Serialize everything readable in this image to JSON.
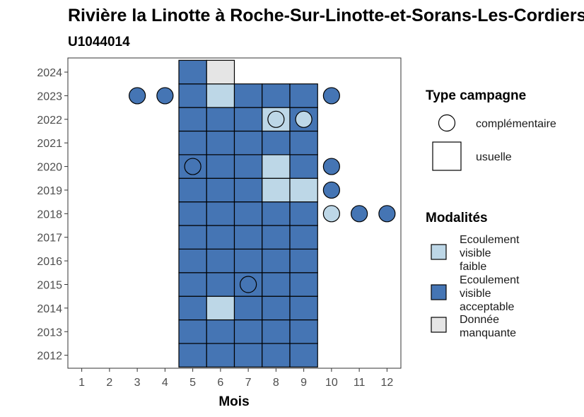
{
  "chart_data": {
    "type": "heatmap",
    "title": "Rivière la Linotte à Roche-Sur-Linotte-et-Sorans-Les-Cordiers",
    "subtitle": "U1044014",
    "xlabel": "Mois",
    "ylabel": "",
    "x_ticks": [
      "1",
      "2",
      "3",
      "4",
      "5",
      "6",
      "7",
      "8",
      "9",
      "10",
      "11",
      "12"
    ],
    "y_ticks": [
      "2012",
      "2013",
      "2014",
      "2015",
      "2016",
      "2017",
      "2018",
      "2019",
      "2020",
      "2021",
      "2022",
      "2023",
      "2024"
    ],
    "xlim": [
      0.5,
      12.5
    ],
    "ylim": [
      2011.45,
      2024.6
    ],
    "grid": false,
    "legend_position": "right",
    "colors": {
      "Ecoulement visible faible": "#bdd7e7",
      "Ecoulement visible acceptable": "#4575b4",
      "Donnée manquante": "#e5e5e5"
    },
    "legend": {
      "type_title": "Type campagne",
      "type_entries": [
        {
          "shape": "circle",
          "label": "complémentaire"
        },
        {
          "shape": "square",
          "label": "usuelle"
        }
      ],
      "modalites_title": "Modalités",
      "modalites_entries": [
        {
          "key": "Ecoulement visible faible",
          "lines": [
            "Ecoulement",
            "visible",
            "faible"
          ]
        },
        {
          "key": "Ecoulement visible acceptable",
          "lines": [
            "Ecoulement",
            "visible",
            "acceptable"
          ]
        },
        {
          "key": "Donnée manquante",
          "lines": [
            "Donnée",
            "manquante"
          ]
        }
      ]
    },
    "usuelle": [
      {
        "year": 2012,
        "month": 5,
        "value": "Ecoulement visible acceptable"
      },
      {
        "year": 2012,
        "month": 6,
        "value": "Ecoulement visible acceptable"
      },
      {
        "year": 2012,
        "month": 7,
        "value": "Ecoulement visible acceptable"
      },
      {
        "year": 2012,
        "month": 8,
        "value": "Ecoulement visible acceptable"
      },
      {
        "year": 2012,
        "month": 9,
        "value": "Ecoulement visible acceptable"
      },
      {
        "year": 2013,
        "month": 5,
        "value": "Ecoulement visible acceptable"
      },
      {
        "year": 2013,
        "month": 6,
        "value": "Ecoulement visible acceptable"
      },
      {
        "year": 2013,
        "month": 7,
        "value": "Ecoulement visible acceptable"
      },
      {
        "year": 2013,
        "month": 8,
        "value": "Ecoulement visible acceptable"
      },
      {
        "year": 2013,
        "month": 9,
        "value": "Ecoulement visible acceptable"
      },
      {
        "year": 2014,
        "month": 5,
        "value": "Ecoulement visible acceptable"
      },
      {
        "year": 2014,
        "month": 6,
        "value": "Ecoulement visible faible"
      },
      {
        "year": 2014,
        "month": 7,
        "value": "Ecoulement visible acceptable"
      },
      {
        "year": 2014,
        "month": 8,
        "value": "Ecoulement visible acceptable"
      },
      {
        "year": 2014,
        "month": 9,
        "value": "Ecoulement visible acceptable"
      },
      {
        "year": 2015,
        "month": 5,
        "value": "Ecoulement visible acceptable"
      },
      {
        "year": 2015,
        "month": 6,
        "value": "Ecoulement visible acceptable"
      },
      {
        "year": 2015,
        "month": 7,
        "value": "Ecoulement visible acceptable"
      },
      {
        "year": 2015,
        "month": 8,
        "value": "Ecoulement visible acceptable"
      },
      {
        "year": 2015,
        "month": 9,
        "value": "Ecoulement visible acceptable"
      },
      {
        "year": 2016,
        "month": 5,
        "value": "Ecoulement visible acceptable"
      },
      {
        "year": 2016,
        "month": 6,
        "value": "Ecoulement visible acceptable"
      },
      {
        "year": 2016,
        "month": 7,
        "value": "Ecoulement visible acceptable"
      },
      {
        "year": 2016,
        "month": 8,
        "value": "Ecoulement visible acceptable"
      },
      {
        "year": 2016,
        "month": 9,
        "value": "Ecoulement visible acceptable"
      },
      {
        "year": 2017,
        "month": 5,
        "value": "Ecoulement visible acceptable"
      },
      {
        "year": 2017,
        "month": 6,
        "value": "Ecoulement visible acceptable"
      },
      {
        "year": 2017,
        "month": 7,
        "value": "Ecoulement visible acceptable"
      },
      {
        "year": 2017,
        "month": 8,
        "value": "Ecoulement visible acceptable"
      },
      {
        "year": 2017,
        "month": 9,
        "value": "Ecoulement visible acceptable"
      },
      {
        "year": 2018,
        "month": 5,
        "value": "Ecoulement visible acceptable"
      },
      {
        "year": 2018,
        "month": 6,
        "value": "Ecoulement visible acceptable"
      },
      {
        "year": 2018,
        "month": 7,
        "value": "Ecoulement visible acceptable"
      },
      {
        "year": 2018,
        "month": 8,
        "value": "Ecoulement visible acceptable"
      },
      {
        "year": 2018,
        "month": 9,
        "value": "Ecoulement visible acceptable"
      },
      {
        "year": 2019,
        "month": 5,
        "value": "Ecoulement visible acceptable"
      },
      {
        "year": 2019,
        "month": 6,
        "value": "Ecoulement visible acceptable"
      },
      {
        "year": 2019,
        "month": 7,
        "value": "Ecoulement visible acceptable"
      },
      {
        "year": 2019,
        "month": 8,
        "value": "Ecoulement visible faible"
      },
      {
        "year": 2019,
        "month": 9,
        "value": "Ecoulement visible faible"
      },
      {
        "year": 2020,
        "month": 5,
        "value": "Ecoulement visible acceptable"
      },
      {
        "year": 2020,
        "month": 6,
        "value": "Ecoulement visible acceptable"
      },
      {
        "year": 2020,
        "month": 7,
        "value": "Ecoulement visible acceptable"
      },
      {
        "year": 2020,
        "month": 8,
        "value": "Ecoulement visible faible"
      },
      {
        "year": 2020,
        "month": 9,
        "value": "Ecoulement visible acceptable"
      },
      {
        "year": 2021,
        "month": 5,
        "value": "Ecoulement visible acceptable"
      },
      {
        "year": 2021,
        "month": 6,
        "value": "Ecoulement visible acceptable"
      },
      {
        "year": 2021,
        "month": 7,
        "value": "Ecoulement visible acceptable"
      },
      {
        "year": 2021,
        "month": 8,
        "value": "Ecoulement visible acceptable"
      },
      {
        "year": 2021,
        "month": 9,
        "value": "Ecoulement visible acceptable"
      },
      {
        "year": 2022,
        "month": 5,
        "value": "Ecoulement visible acceptable"
      },
      {
        "year": 2022,
        "month": 6,
        "value": "Ecoulement visible acceptable"
      },
      {
        "year": 2022,
        "month": 7,
        "value": "Ecoulement visible acceptable"
      },
      {
        "year": 2022,
        "month": 8,
        "value": "Ecoulement visible faible"
      },
      {
        "year": 2022,
        "month": 9,
        "value": "Ecoulement visible acceptable"
      },
      {
        "year": 2023,
        "month": 5,
        "value": "Ecoulement visible acceptable"
      },
      {
        "year": 2023,
        "month": 6,
        "value": "Ecoulement visible faible"
      },
      {
        "year": 2023,
        "month": 7,
        "value": "Ecoulement visible acceptable"
      },
      {
        "year": 2023,
        "month": 8,
        "value": "Ecoulement visible acceptable"
      },
      {
        "year": 2023,
        "month": 9,
        "value": "Ecoulement visible acceptable"
      },
      {
        "year": 2024,
        "month": 5,
        "value": "Ecoulement visible acceptable"
      },
      {
        "year": 2024,
        "month": 6,
        "value": "Donnée manquante"
      }
    ],
    "complementaire": [
      {
        "year": 2023,
        "month": 3,
        "value": "Ecoulement visible acceptable"
      },
      {
        "year": 2023,
        "month": 4,
        "value": "Ecoulement visible acceptable"
      },
      {
        "year": 2023,
        "month": 10,
        "value": "Ecoulement visible acceptable"
      },
      {
        "year": 2022,
        "month": 8,
        "value": "Ecoulement visible faible"
      },
      {
        "year": 2022,
        "month": 9,
        "value": "Ecoulement visible faible"
      },
      {
        "year": 2020,
        "month": 5,
        "value": "Ecoulement visible acceptable"
      },
      {
        "year": 2020,
        "month": 10,
        "value": "Ecoulement visible acceptable"
      },
      {
        "year": 2019,
        "month": 10,
        "value": "Ecoulement visible acceptable"
      },
      {
        "year": 2018,
        "month": 10,
        "value": "Ecoulement visible faible"
      },
      {
        "year": 2018,
        "month": 11,
        "value": "Ecoulement visible acceptable"
      },
      {
        "year": 2018,
        "month": 12,
        "value": "Ecoulement visible acceptable"
      },
      {
        "year": 2015,
        "month": 7,
        "value": "Ecoulement visible acceptable"
      }
    ]
  }
}
